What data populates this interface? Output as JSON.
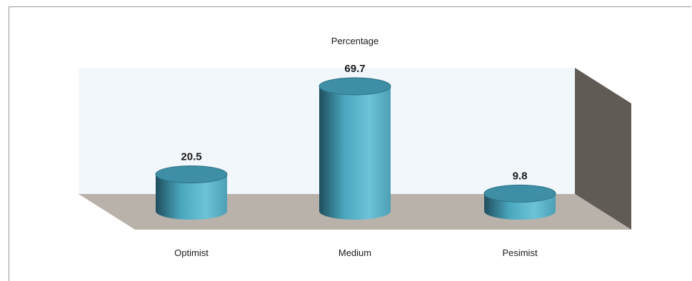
{
  "chart_data": {
    "type": "bar",
    "title": "Percentage",
    "categories": [
      "Optimist",
      "Medium",
      "Pesimist"
    ],
    "values": [
      20.5,
      69.7,
      9.8
    ],
    "data_labels": [
      "20.5",
      "69.7",
      "9.8"
    ],
    "xlabel": "",
    "ylabel": "",
    "ylim": [
      0,
      80
    ],
    "grid": false,
    "legend": "none",
    "style": "3d-cylinder"
  },
  "colors": {
    "bar_top": "#3e8ea6",
    "bar_body_light": "#6cc3d8",
    "bar_body_dark": "#1f4e5e",
    "back_wall": "#f1f7fb",
    "floor": "#b8b2aa",
    "side_wall": "#615b55"
  }
}
